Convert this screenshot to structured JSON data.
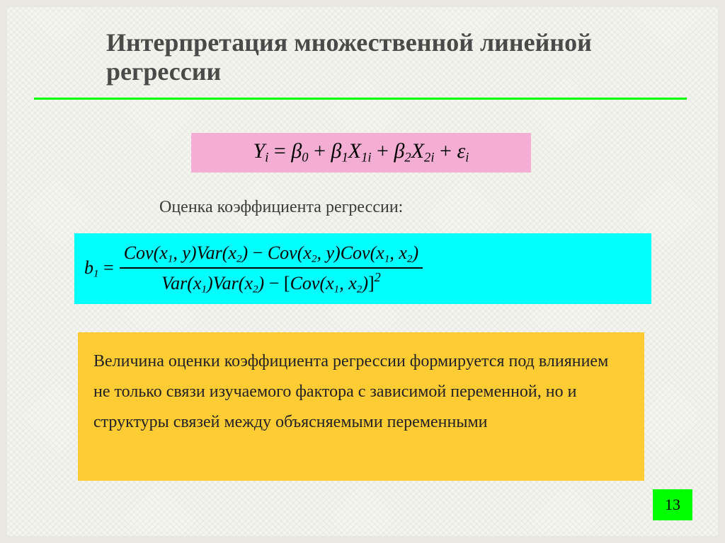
{
  "title": "Интерпретация множественной линейной регрессии",
  "eq1": {
    "html": "<i>Y</i><sub>i</sub> <span class='rm'>=</span> <i>β</i><sub>0</sub> <span class='rm'>+</span> <i>β</i><sub>1</sub><i>X</i><sub>1<i>i</i></sub> <span class='rm'>+</span> <i>β</i><sub>2</sub><i>X</i><sub>2<i>i</i></sub> <span class='rm'>+</span> <i>ε</i><sub>i</sub>",
    "bg": "#f4aed3"
  },
  "subtitle": "Оценка коэффициента регрессии:",
  "eq2": {
    "lhs": "<i>b</i><sub>1</sub> <span class='rm'>=</span>",
    "num": "<i>Cov</i>(<i>x</i><sub>1</sub>, <i>y</i>)<i>Var</i>(<i>x</i><sub>2</sub>) <span class='rm'>−</span> <i>Cov</i>(<i>x</i><sub>2</sub>, <i>y</i>)<i>Cov</i>(<i>x</i><sub>1</sub>, <i>x</i><sub>2</sub>)",
    "den": "<i>Var</i>(<i>x</i><sub>1</sub>)<i>Var</i>(<i>x</i><sub>2</sub>) <span class='rm'>−</span> <span class='rm'>[</span><i>Cov</i>(<i>x</i><sub>1</sub>, <i>x</i><sub>2</sub>)<span class='rm'>]</span><sup>2</sup>",
    "bg": "#00ffff"
  },
  "desc": "Величина оценки коэффициента регрессии формируется под влиянием не только связи изучаемого фактора с зависимой переменной, но и структуры связей между объясняемыми переменными",
  "desc_bg": "#ffcc33",
  "accent_color": "#00ff00",
  "page_number": "13",
  "background": "#f5f5f0",
  "title_color": "#4a4a4a",
  "title_fontsize": 36,
  "body_fontsize": 24
}
